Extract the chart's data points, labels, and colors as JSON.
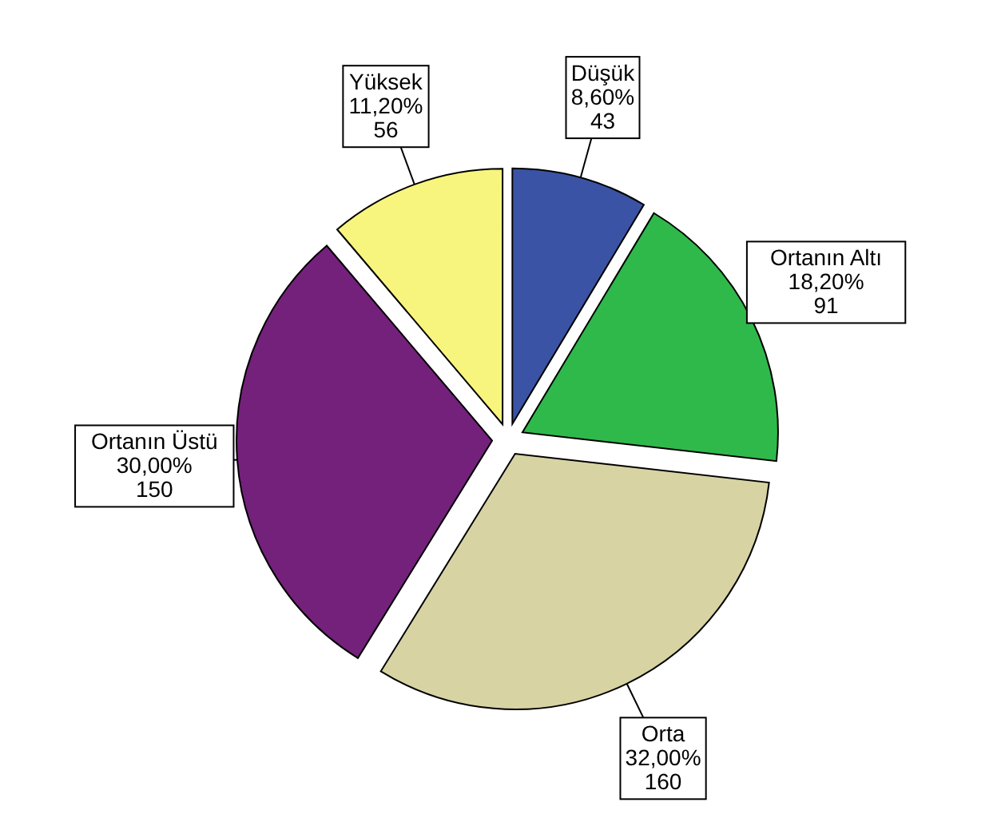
{
  "chart_data": {
    "type": "pie",
    "categories": [
      "Düşük",
      "Ortanın Altı",
      "Orta",
      "Ortanın Üstü",
      "Yüksek"
    ],
    "values": [
      43,
      91,
      160,
      150,
      56
    ],
    "value_labels": [
      "8,60%\n43",
      "18,20%\n91",
      "32,00%\n160",
      "30,00%\n150",
      "11,20%\n56"
    ],
    "colors": [
      "#3a53a4",
      "#2fb94b",
      "#d7d3a3",
      "#74217b",
      "#f8f57e"
    ]
  }
}
